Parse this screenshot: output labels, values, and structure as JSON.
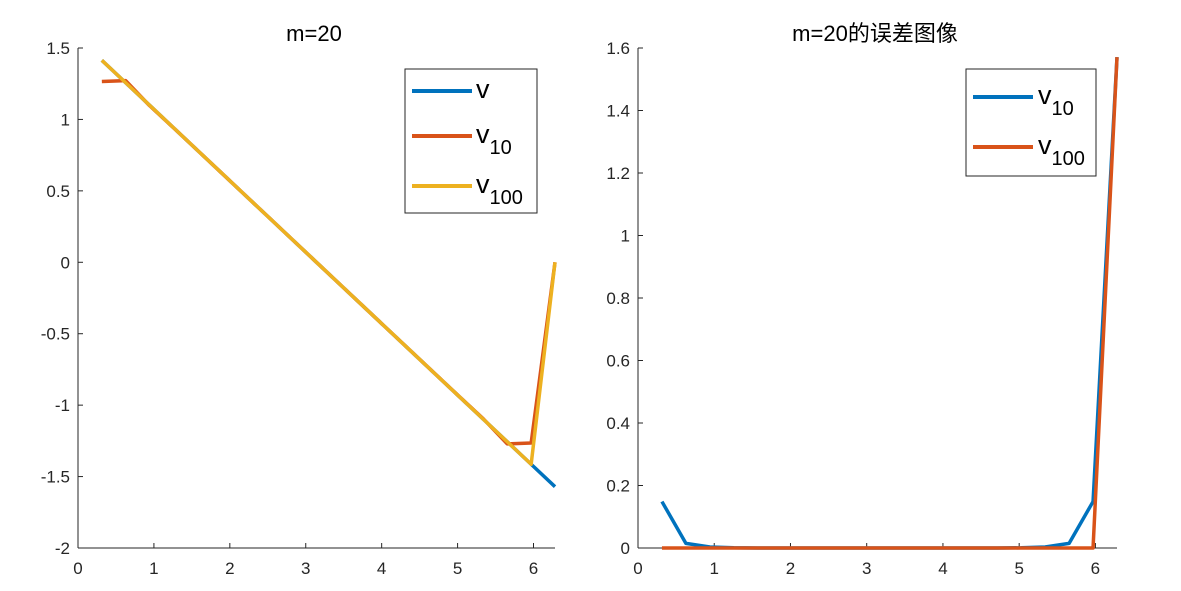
{
  "chart_data": [
    {
      "type": "line",
      "title": "m=20",
      "xlabel": "",
      "ylabel": "",
      "xlim": [
        0,
        6.2832
      ],
      "ylim": [
        -2,
        1.5
      ],
      "xticks": [
        0,
        1,
        2,
        3,
        4,
        5,
        6
      ],
      "yticks": [
        -2,
        -1.5,
        -1,
        -0.5,
        0,
        0.5,
        1,
        1.5
      ],
      "xtick_labels": [
        "0",
        "1",
        "2",
        "3",
        "4",
        "5",
        "6"
      ],
      "ytick_labels": [
        "-2",
        "-1.5",
        "-1",
        "-0.5",
        "0",
        "0.5",
        "1",
        "1.5"
      ],
      "grid": false,
      "legend_position": "top-right",
      "series": [
        {
          "name": "v",
          "legend_base": "v",
          "legend_sub": "",
          "color": "#0072BD",
          "x": [
            0.3142,
            0.6283,
            0.9425,
            1.2566,
            1.5708,
            1.885,
            2.1991,
            2.5133,
            2.8274,
            3.1416,
            3.4558,
            3.7699,
            4.0841,
            4.3982,
            4.7124,
            5.0265,
            5.3407,
            5.6549,
            5.969,
            6.2832
          ],
          "y": [
            1.4137,
            1.2566,
            1.0996,
            0.9425,
            0.7854,
            0.6283,
            0.4712,
            0.3142,
            0.1571,
            0.0,
            -0.1571,
            -0.3142,
            -0.4712,
            -0.6283,
            -0.7854,
            -0.9425,
            -1.0996,
            -1.2566,
            -1.4137,
            -1.5708
          ]
        },
        {
          "name": "v_10",
          "legend_base": "v",
          "legend_sub": "10",
          "color": "#D95319",
          "x": [
            0.3142,
            0.6283,
            0.9425,
            1.2566,
            1.5708,
            1.885,
            2.1991,
            2.5133,
            2.8274,
            3.1416,
            3.4558,
            3.7699,
            4.0841,
            4.3982,
            4.7124,
            5.0265,
            5.3407,
            5.6549,
            5.969,
            6.2832
          ],
          "y": [
            1.2651,
            1.2713,
            1.0965,
            0.9418,
            0.7852,
            0.6282,
            0.4712,
            0.3142,
            0.1571,
            0.0,
            -0.1571,
            -0.3142,
            -0.4712,
            -0.6282,
            -0.7852,
            -0.9418,
            -1.0965,
            -1.2713,
            -1.2651,
            0.0
          ]
        },
        {
          "name": "v_100",
          "legend_base": "v",
          "legend_sub": "100",
          "color": "#EDB120",
          "x": [
            0.3142,
            0.6283,
            0.9425,
            1.2566,
            1.5708,
            1.885,
            2.1991,
            2.5133,
            2.8274,
            3.1416,
            3.4558,
            3.7699,
            4.0841,
            4.3982,
            4.7124,
            5.0265,
            5.3407,
            5.6549,
            5.969,
            6.2832
          ],
          "y": [
            1.4137,
            1.2566,
            1.0996,
            0.9425,
            0.7854,
            0.6283,
            0.4712,
            0.3142,
            0.1571,
            0.0,
            -0.1571,
            -0.3142,
            -0.4712,
            -0.6283,
            -0.7854,
            -0.9425,
            -1.0996,
            -1.2566,
            -1.4137,
            0.0
          ]
        }
      ]
    },
    {
      "type": "line",
      "title": "m=20的误差图像",
      "xlabel": "",
      "ylabel": "",
      "xlim": [
        0,
        6.2832
      ],
      "ylim": [
        0,
        1.6
      ],
      "xticks": [
        0,
        1,
        2,
        3,
        4,
        5,
        6
      ],
      "yticks": [
        0,
        0.2,
        0.4,
        0.6,
        0.8,
        1,
        1.2,
        1.4,
        1.6
      ],
      "xtick_labels": [
        "0",
        "1",
        "2",
        "3",
        "4",
        "5",
        "6"
      ],
      "ytick_labels": [
        "0",
        "0.2",
        "0.4",
        "0.6",
        "0.8",
        "1",
        "1.2",
        "1.4",
        "1.6"
      ],
      "grid": false,
      "legend_position": "top-right",
      "series": [
        {
          "name": "v_10",
          "legend_base": "v",
          "legend_sub": "10",
          "color": "#0072BD",
          "x": [
            0.3142,
            0.6283,
            0.9425,
            1.2566,
            1.5708,
            1.885,
            2.1991,
            2.5133,
            2.8274,
            3.1416,
            3.4558,
            3.7699,
            4.0841,
            4.3982,
            4.7124,
            5.0265,
            5.3407,
            5.6549,
            5.969,
            6.2832
          ],
          "y": [
            0.1486,
            0.0147,
            0.0031,
            0.0007,
            0.0002,
            0.0001,
            0.0,
            0.0,
            0.0,
            0.0,
            0.0,
            0.0,
            0.0,
            0.0001,
            0.0002,
            0.0007,
            0.0031,
            0.0147,
            0.1486,
            1.5708
          ]
        },
        {
          "name": "v_100",
          "legend_base": "v",
          "legend_sub": "100",
          "color": "#D95319",
          "x": [
            0.3142,
            0.6283,
            0.9425,
            1.2566,
            1.5708,
            1.885,
            2.1991,
            2.5133,
            2.8274,
            3.1416,
            3.4558,
            3.7699,
            4.0841,
            4.3982,
            4.7124,
            5.0265,
            5.3407,
            5.6549,
            5.969,
            6.2832
          ],
          "y": [
            0.0,
            0.0,
            0.0,
            0.0,
            0.0,
            0.0,
            0.0,
            0.0,
            0.0,
            0.0,
            0.0,
            0.0,
            0.0,
            0.0,
            0.0,
            0.0,
            0.0,
            0.0,
            0.0,
            1.5708
          ]
        }
      ]
    }
  ]
}
